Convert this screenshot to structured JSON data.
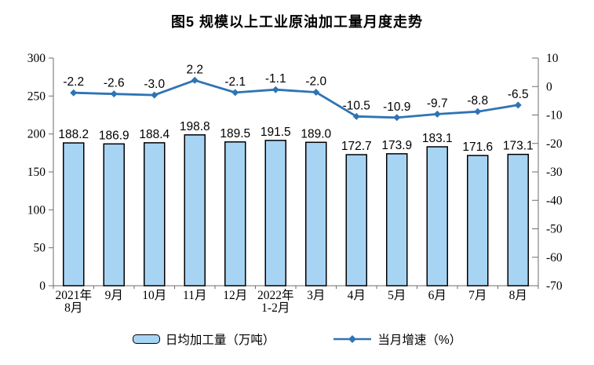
{
  "chart_data": {
    "type": "bar+line",
    "title": "图5 规模以上工业原油加工量月度走势",
    "categories": [
      [
        "2021年",
        "8月"
      ],
      [
        "9月"
      ],
      [
        "10月"
      ],
      [
        "11月"
      ],
      [
        "12月"
      ],
      [
        "2022年",
        "1-2月"
      ],
      [
        "3月"
      ],
      [
        "4月"
      ],
      [
        "5月"
      ],
      [
        "6月"
      ],
      [
        "7月"
      ],
      [
        "8月"
      ]
    ],
    "series": [
      {
        "name": "日均加工量（万吨）",
        "type": "bar",
        "axis": "left",
        "values": [
          188.2,
          186.9,
          188.4,
          198.8,
          189.5,
          191.5,
          189.0,
          172.7,
          173.9,
          183.1,
          171.6,
          173.1
        ],
        "labels": [
          "188.2",
          "186.9",
          "188.4",
          "198.8",
          "189.5",
          "191.5",
          "189.0",
          "172.7",
          "173.9",
          "183.1",
          "171.6",
          "173.1"
        ],
        "fill": "#A8D4F4",
        "border": "#000000"
      },
      {
        "name": "当月增速（%）",
        "type": "line",
        "axis": "right",
        "values": [
          -2.2,
          -2.6,
          -3.0,
          2.2,
          -2.1,
          -1.1,
          -2.0,
          -10.5,
          -10.9,
          -9.7,
          -8.8,
          -6.5
        ],
        "labels": [
          "-2.2",
          "-2.6",
          "-3.0",
          "2.2",
          "-2.1",
          "-1.1",
          "-2.0",
          "-10.5",
          "-10.9",
          "-9.7",
          "-8.8",
          "-6.5"
        ],
        "color": "#2E74B5",
        "marker": "diamond"
      }
    ],
    "left_axis": {
      "min": 0,
      "max": 300,
      "step": 50,
      "tick_labels": [
        "0",
        "50",
        "100",
        "150",
        "200",
        "250",
        "300"
      ]
    },
    "right_axis": {
      "min": -70,
      "max": 10,
      "step": 10,
      "tick_labels": [
        "-70",
        "-60",
        "-50",
        "-40",
        "-30",
        "-20",
        "-10",
        "0",
        "10"
      ]
    },
    "legend": {
      "position": "bottom",
      "items": [
        "日均加工量（万吨）",
        "当月增速（%）"
      ]
    },
    "grid": false
  }
}
